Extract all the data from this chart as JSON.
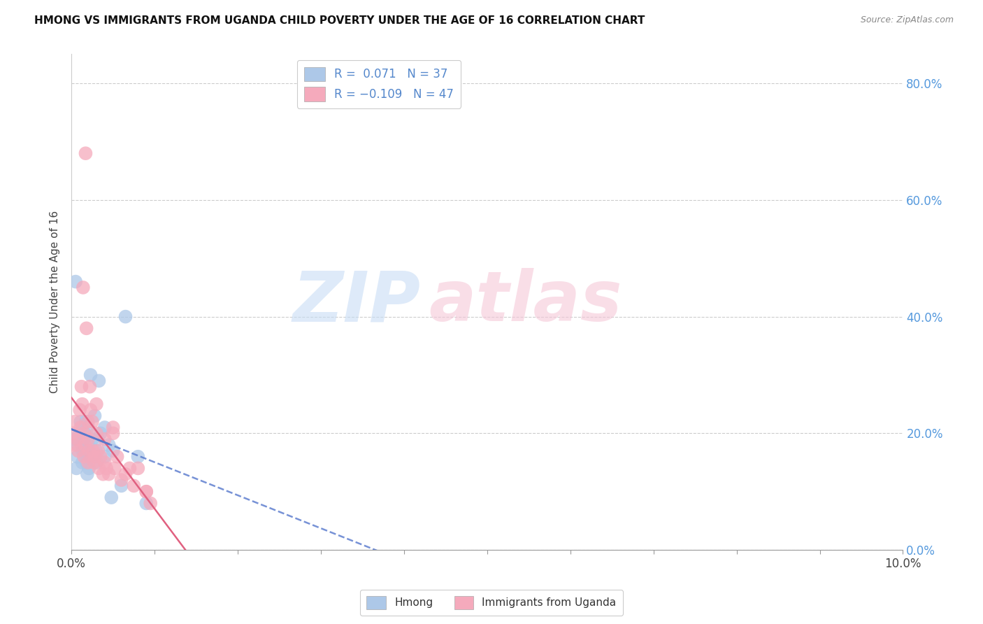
{
  "title": "HMONG VS IMMIGRANTS FROM UGANDA CHILD POVERTY UNDER THE AGE OF 16 CORRELATION CHART",
  "source": "Source: ZipAtlas.com",
  "ylabel": "Child Poverty Under the Age of 16",
  "xlim": [
    0.0,
    0.1
  ],
  "ylim": [
    0.0,
    0.85
  ],
  "ytick_values": [
    0.0,
    0.2,
    0.4,
    0.6,
    0.8
  ],
  "hmong_R": 0.071,
  "hmong_N": 37,
  "uganda_R": -0.109,
  "uganda_N": 47,
  "hmong_color": "#adc8e8",
  "uganda_color": "#f5aabc",
  "hmong_line_color": "#5577cc",
  "uganda_line_color": "#e06080",
  "background_color": "#ffffff",
  "grid_color": "#cccccc",
  "hmong_x": [
    0.0003,
    0.0005,
    0.0006,
    0.0007,
    0.0008,
    0.001,
    0.0011,
    0.0012,
    0.0013,
    0.0013,
    0.0014,
    0.0015,
    0.0016,
    0.0017,
    0.0018,
    0.0019,
    0.002,
    0.002,
    0.0021,
    0.0022,
    0.0023,
    0.0025,
    0.0028,
    0.003,
    0.003,
    0.0032,
    0.0033,
    0.0035,
    0.004,
    0.004,
    0.0045,
    0.0048,
    0.005,
    0.006,
    0.0065,
    0.008,
    0.009
  ],
  "hmong_y": [
    0.19,
    0.46,
    0.14,
    0.16,
    0.18,
    0.2,
    0.22,
    0.18,
    0.15,
    0.17,
    0.19,
    0.17,
    0.2,
    0.22,
    0.15,
    0.13,
    0.21,
    0.18,
    0.14,
    0.16,
    0.3,
    0.19,
    0.23,
    0.15,
    0.17,
    0.19,
    0.29,
    0.2,
    0.16,
    0.21,
    0.18,
    0.09,
    0.17,
    0.11,
    0.4,
    0.16,
    0.08
  ],
  "uganda_x": [
    0.0002,
    0.0004,
    0.0005,
    0.0007,
    0.0008,
    0.001,
    0.0011,
    0.0012,
    0.0013,
    0.0014,
    0.0015,
    0.0016,
    0.0017,
    0.0018,
    0.002,
    0.002,
    0.0021,
    0.0022,
    0.0023,
    0.0025,
    0.0026,
    0.0027,
    0.0028,
    0.003,
    0.003,
    0.0032,
    0.0033,
    0.0035,
    0.0038,
    0.004,
    0.004,
    0.0042,
    0.0045,
    0.005,
    0.0052,
    0.0055,
    0.006,
    0.0065,
    0.007,
    0.0075,
    0.008,
    0.009,
    0.0095,
    0.005,
    0.0015,
    0.002,
    0.009
  ],
  "uganda_y": [
    0.2,
    0.22,
    0.18,
    0.19,
    0.17,
    0.24,
    0.21,
    0.28,
    0.25,
    0.45,
    0.2,
    0.18,
    0.68,
    0.38,
    0.22,
    0.19,
    0.17,
    0.28,
    0.24,
    0.22,
    0.17,
    0.15,
    0.16,
    0.2,
    0.25,
    0.17,
    0.14,
    0.16,
    0.13,
    0.15,
    0.19,
    0.14,
    0.13,
    0.21,
    0.14,
    0.16,
    0.12,
    0.13,
    0.14,
    0.11,
    0.14,
    0.1,
    0.08,
    0.2,
    0.16,
    0.15,
    0.1
  ]
}
